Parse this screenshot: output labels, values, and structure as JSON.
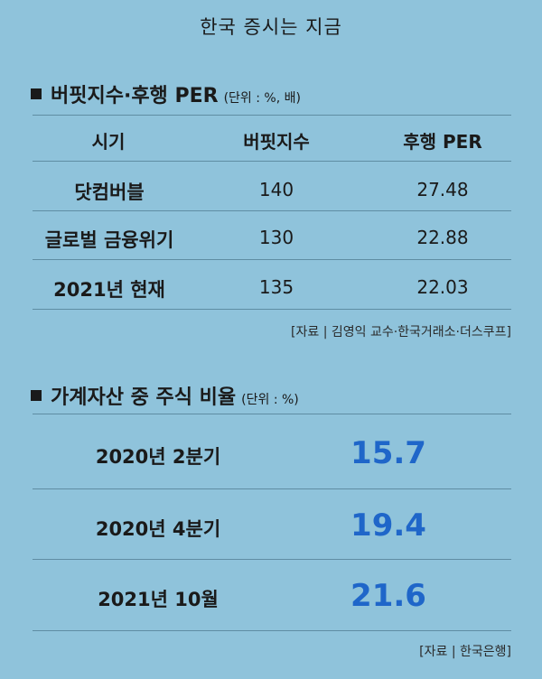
{
  "title": "한국 증시는 지금",
  "section1": {
    "title": "버핏지수·후행 PER",
    "unit": "(단위 : %, 배)",
    "headers": [
      "시기",
      "버핏지수",
      "후행 PER"
    ],
    "rows": [
      {
        "label": "닷컴버블",
        "buffett": "140",
        "per": "27.48"
      },
      {
        "label": "글로벌 금융위기",
        "buffett": "130",
        "per": "22.88"
      },
      {
        "label": "2021년 현재",
        "buffett": "135",
        "per": "22.03"
      }
    ],
    "source": "[자료 | 김영익 교수·한국거래소·더스쿠프]"
  },
  "section2": {
    "title": "가계자산 중 주식 비율",
    "unit": "(단위 : %)",
    "rows": [
      {
        "label": "2020년 2분기",
        "value": "15.7"
      },
      {
        "label": "2020년 4분기",
        "value": "19.4"
      },
      {
        "label": "2021년 10월",
        "value": "21.6"
      }
    ],
    "source": "[자료 | 한국은행]"
  },
  "colors": {
    "background": "#8fc3db",
    "highlight": "#1f66c9",
    "text": "#1a1a1a"
  },
  "chart_data": [
    {
      "type": "table",
      "title": "버핏지수·후행 PER",
      "columns": [
        "시기",
        "버핏지수",
        "후행 PER"
      ],
      "rows": [
        [
          "닷컴버블",
          140,
          27.48
        ],
        [
          "글로벌 금융위기",
          130,
          22.88
        ],
        [
          "2021년 현재",
          135,
          22.03
        ]
      ]
    },
    {
      "type": "table",
      "title": "가계자산 중 주식 비율",
      "columns": [
        "",
        ""
      ],
      "rows": [
        [
          "2020년 2분기",
          15.7
        ],
        [
          "2020년 4분기",
          19.4
        ],
        [
          "2021년 10월",
          21.6
        ]
      ]
    }
  ]
}
